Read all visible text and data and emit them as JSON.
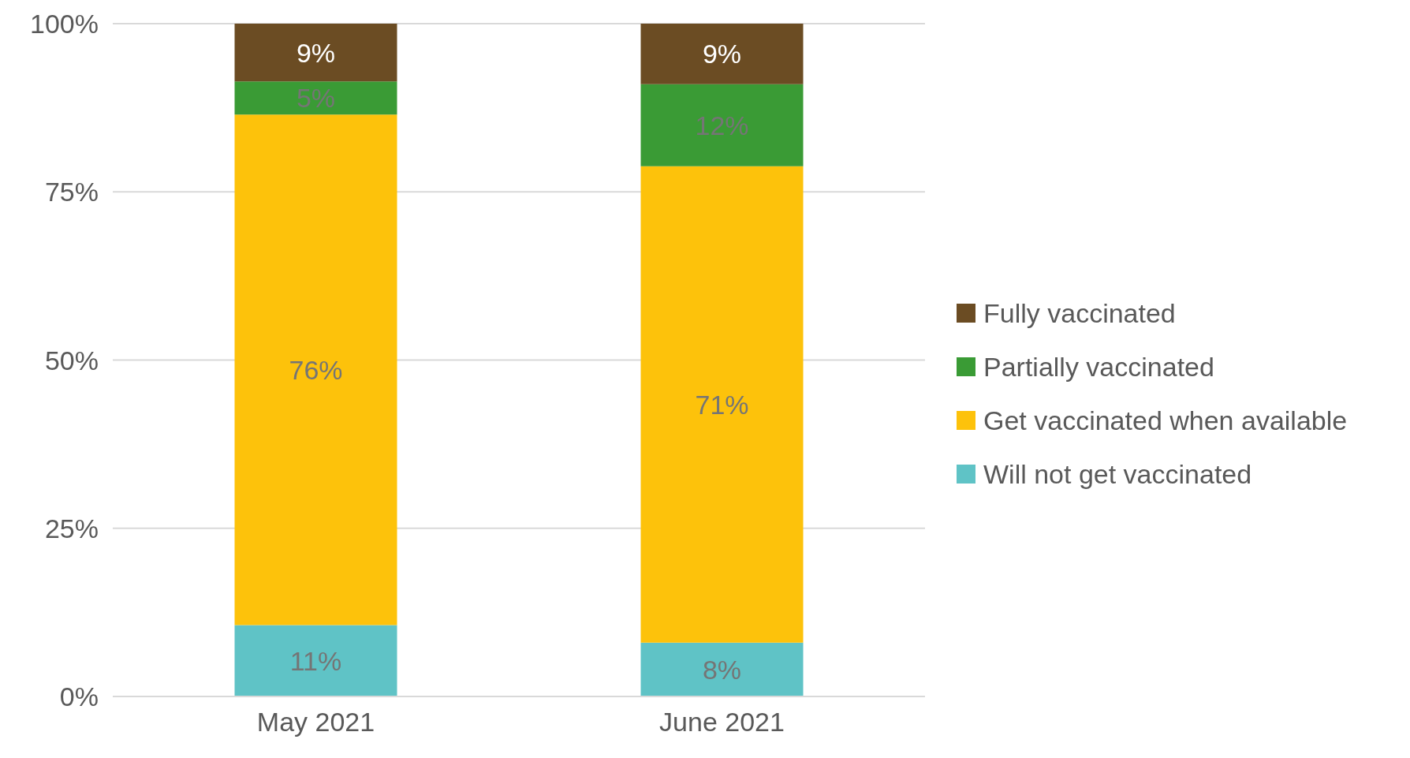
{
  "chart_data": {
    "type": "bar",
    "stacked": true,
    "categories": [
      "May 2021",
      "June 2021"
    ],
    "series": [
      {
        "name": "Will not get vaccinated",
        "color": "#5fc3c6",
        "values": [
          10.6,
          8
        ],
        "value_labels": [
          "11%",
          "8%"
        ]
      },
      {
        "name": "Get vaccinated when available",
        "color": "#fdc20b",
        "values": [
          75.9,
          70.8
        ],
        "value_labels": [
          "76%",
          "71%"
        ]
      },
      {
        "name": "Partially vaccinated",
        "color": "#3a9b35",
        "values": [
          4.9,
          12.2
        ],
        "value_labels": [
          "5%",
          "12%"
        ]
      },
      {
        "name": "Fully vaccinated",
        "color": "#6b4c23",
        "values": [
          8.6,
          9
        ],
        "value_labels": [
          "9%",
          "9%"
        ]
      }
    ],
    "ylim": [
      0,
      100
    ],
    "yticks": [
      {
        "value": 0,
        "label": "0%"
      },
      {
        "value": 25,
        "label": "25%"
      },
      {
        "value": 50,
        "label": "50%"
      },
      {
        "value": 75,
        "label": "75%"
      },
      {
        "value": 100,
        "label": "100%"
      }
    ],
    "grid": "y",
    "legend": "right"
  }
}
